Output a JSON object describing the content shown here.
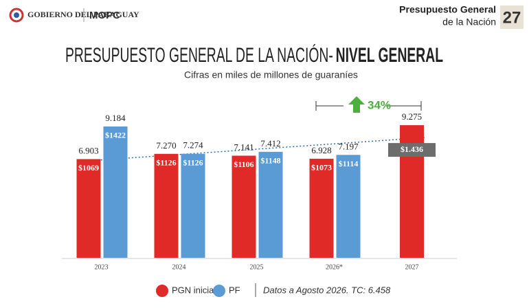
{
  "header": {
    "logo_text": "GOBIERNO DEL PARAGUAY",
    "ministry": "MOPC",
    "brand_line1": "Presupuesto General",
    "brand_line2": "de la Nación",
    "brand_year": "27"
  },
  "chart_data": {
    "type": "bar",
    "title": "PRESUPUESTO GENERAL DE LA NACIÓN-",
    "title_bold": "NIVEL GENERAL",
    "subtitle": "Cifras en miles de millones de guaraníes",
    "categories": [
      "2023",
      "2024",
      "2025",
      "2026*",
      "2027"
    ],
    "series": [
      {
        "name": "PGN inicial",
        "color": "#e02a27",
        "values": [
          6903,
          7270,
          7141,
          6928,
          9275
        ],
        "value_labels": [
          "6.903",
          "7.270",
          "7.141",
          "6.928",
          "9.275"
        ],
        "usd_labels": [
          "$1069",
          "$1126",
          "$1106",
          "$1073",
          "$1.436"
        ]
      },
      {
        "name": "PF",
        "color": "#5b9bd5",
        "values": [
          9184,
          7274,
          7412,
          7197,
          null
        ],
        "value_labels": [
          "9.184",
          "7.274",
          "7.412",
          "7.197",
          null
        ],
        "usd_labels": [
          "$1422",
          "$1126",
          "$1148",
          "$1114",
          null
        ]
      }
    ],
    "ylim": [
      0,
      10000
    ],
    "annotation": "34%",
    "note": "Datos a Agosto 2026. TC: 6.458"
  }
}
